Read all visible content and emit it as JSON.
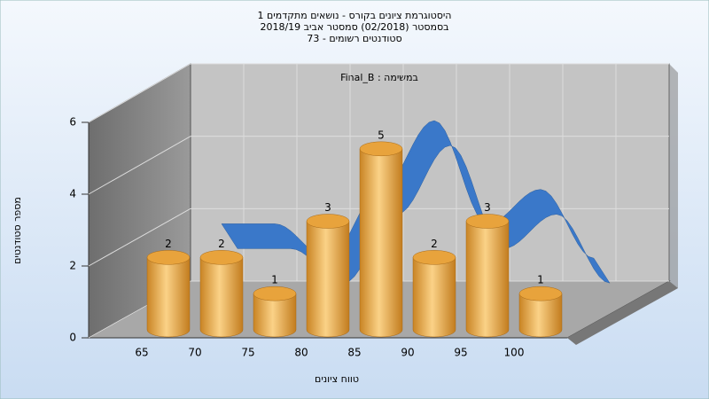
{
  "chart_data": {
    "type": "bar",
    "title": [
      "היסטוגרמת ציונים בקורס - נושאים מתקדמים 1",
      "בסמסטר  (02/2018)  סמסטר אביב 2018/19",
      "סטודנטים רשומים - 73"
    ],
    "annotation": "Final_B : במשימה",
    "x_label": "טווח ציונים",
    "y_label": "מספר סטודנטים",
    "categories": [
      "65",
      "70",
      "75",
      "80",
      "85",
      "90",
      "95",
      "100"
    ],
    "values": [
      2,
      2,
      1,
      3,
      5,
      2,
      3,
      1
    ],
    "color": "#e8a33c",
    "curve_color": "#3a78c9",
    "ylim": [
      0,
      6
    ],
    "yticks": [
      0,
      2,
      4,
      6
    ],
    "grid": true
  }
}
